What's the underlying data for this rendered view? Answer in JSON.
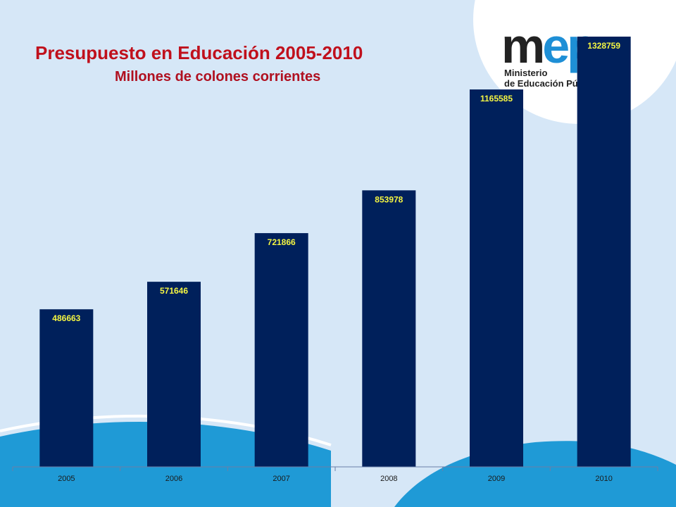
{
  "header": {
    "title": "Presupuesto en Educación 2005-2010",
    "subtitle": "Millones de colones corrientes"
  },
  "logo": {
    "mark_a": "m",
    "mark_b": "ep",
    "line1": "Ministerio",
    "line2": "de Educación Pú"
  },
  "colors": {
    "background": "#d6e7f7",
    "bar": "#00205b",
    "value_label": "#f5f542",
    "title": "#c0101c",
    "wave": "#1f9ad6"
  },
  "chart_data": {
    "type": "bar",
    "title": "Presupuesto en Educación 2005-2010",
    "subtitle": "Millones de colones corrientes",
    "categories": [
      "2005",
      "2006",
      "2007",
      "2008",
      "2009",
      "2010"
    ],
    "values": [
      486663,
      571646,
      721866,
      853978,
      1165585,
      1328759
    ],
    "labels": [
      "486663",
      "571646",
      "721866",
      "853978",
      "1165585",
      "1328759"
    ],
    "xlabel": "",
    "ylabel": "",
    "ylim": [
      0,
      1328759
    ],
    "grid": false,
    "legend": "none"
  }
}
